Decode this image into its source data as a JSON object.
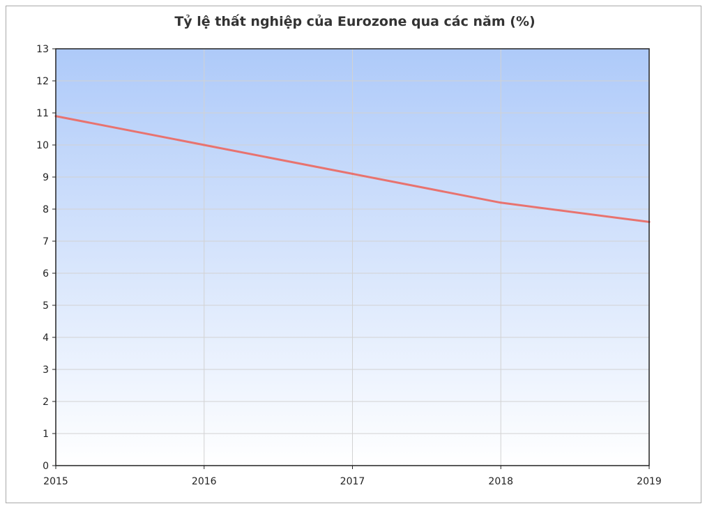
{
  "chart_data": {
    "type": "line",
    "title": "Tỷ lệ thất nghiệp của Eurozone qua các năm (%)",
    "xlabel": "",
    "ylabel": "",
    "x": [
      "2015",
      "2016",
      "2017",
      "2018",
      "2019"
    ],
    "series": [
      {
        "values": [
          10.9,
          10.0,
          9.1,
          8.2,
          7.6
        ],
        "color": "#e8736f"
      }
    ],
    "ylim": [
      0,
      13
    ],
    "y_ticks": [
      0,
      1,
      2,
      3,
      4,
      5,
      6,
      7,
      8,
      9,
      10,
      11,
      12,
      13
    ],
    "grid": true,
    "legend": "none",
    "background_gradient": [
      "#aecaf9",
      "#ffffff"
    ]
  }
}
